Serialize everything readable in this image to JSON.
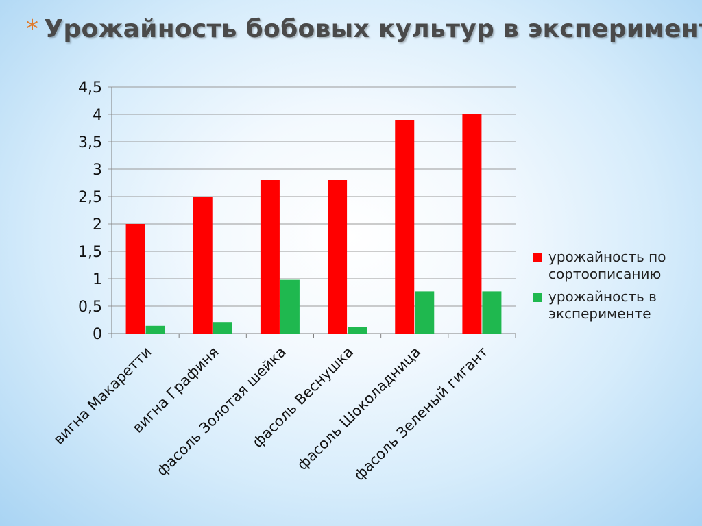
{
  "slide": {
    "star": "*",
    "title": "Урожайность бобовых культур в эксперименте"
  },
  "colors": {
    "series_1": "#ff0000",
    "series_2": "#1fb84f",
    "gridline": "#9a9a9a",
    "axis": "#808080"
  },
  "chart_data": {
    "type": "bar",
    "title": "",
    "xlabel": "",
    "ylabel": "",
    "ylim": [
      0,
      4.5
    ],
    "ytick_step": 0.5,
    "yticks": [
      "0",
      "0,5",
      "1",
      "1,5",
      "2",
      "2,5",
      "3",
      "3,5",
      "4",
      "4,5"
    ],
    "grid": true,
    "legend_position": "right",
    "categories": [
      "вигна Макаретти",
      "вигна Графиня",
      "фасоль Золотая шейка",
      "фасоль Веснушка",
      "фасоль Шоколадница",
      "фасоль Зеленый гигант"
    ],
    "series": [
      {
        "name": "урожайность по сортоописанию",
        "values": [
          2.0,
          2.5,
          2.8,
          2.8,
          3.9,
          4.0
        ]
      },
      {
        "name": "урожайность в эксперименте",
        "values": [
          0.14,
          0.21,
          0.98,
          0.12,
          0.77,
          0.77
        ]
      }
    ],
    "legend_lines": [
      [
        "урожайность по",
        "сортоописанию"
      ],
      [
        "урожайность в",
        "эксперименте"
      ]
    ]
  }
}
